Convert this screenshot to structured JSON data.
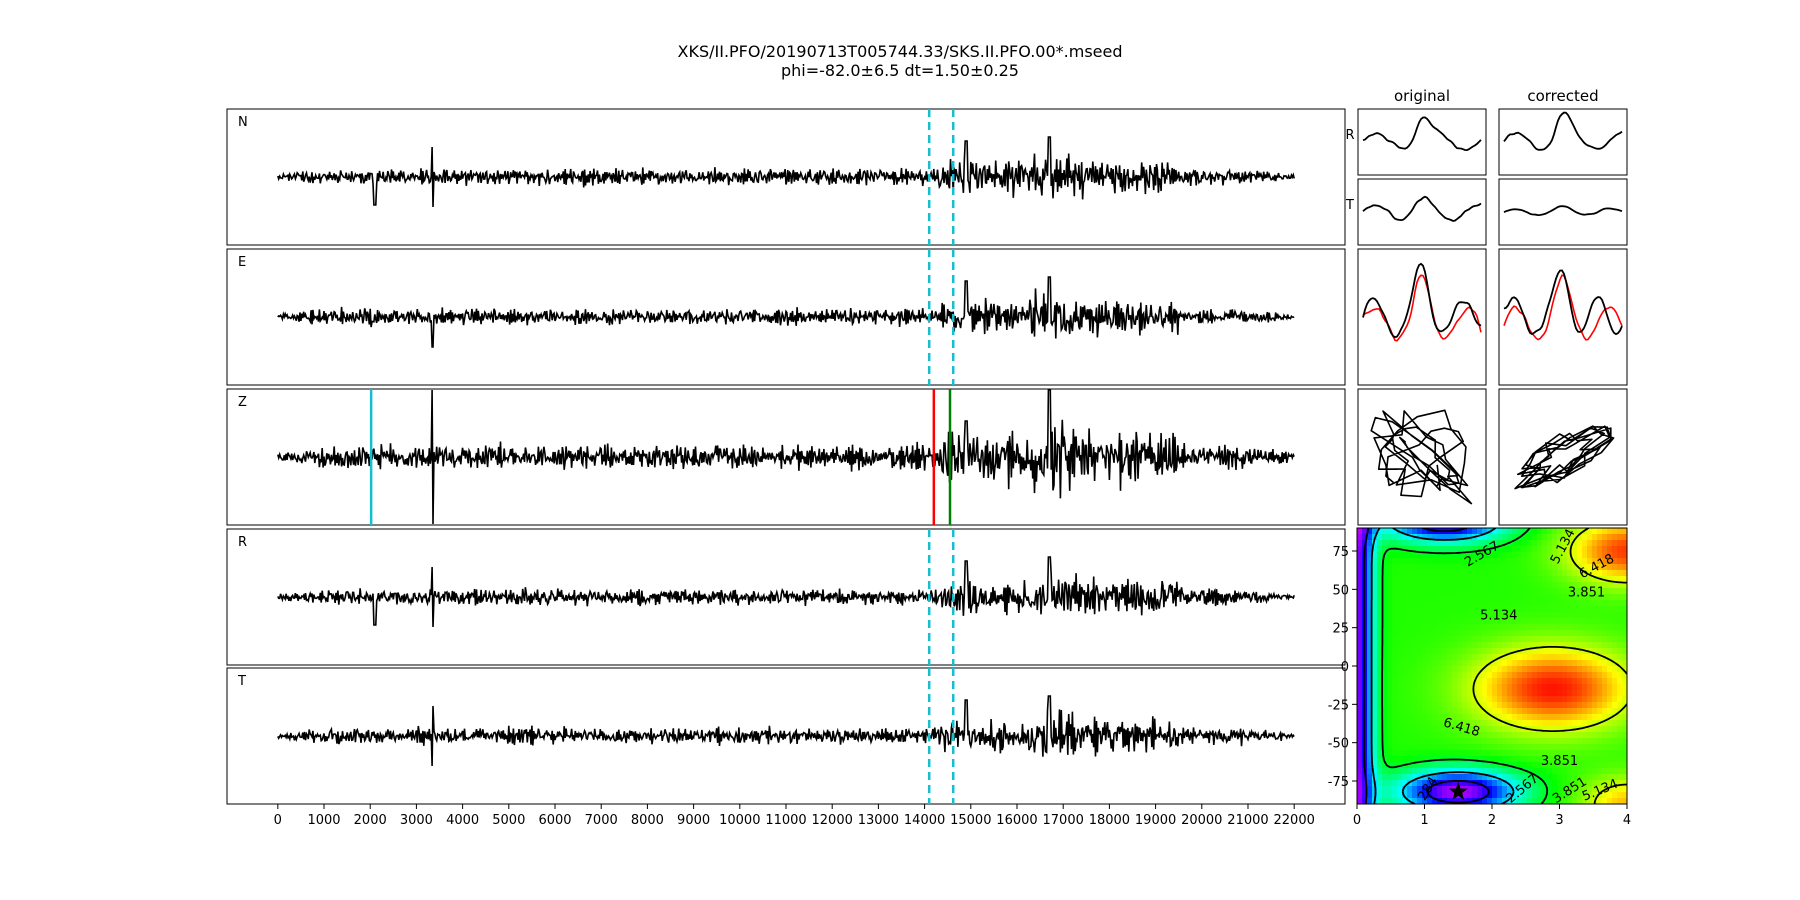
{
  "title_line1": "XKS/II.PFO/20190713T005744.33/SKS.II.PFO.00*.mseed",
  "title_line2": "phi=-82.0±6.5 dt=1.50±0.25",
  "chart_data": [
    {
      "type": "line",
      "id": "traces",
      "panels": [
        "N",
        "E",
        "Z",
        "R",
        "T"
      ],
      "x_ticks": [
        0,
        1000,
        2000,
        3000,
        4000,
        5000,
        6000,
        7000,
        8000,
        9000,
        10000,
        11000,
        12000,
        13000,
        14000,
        15000,
        16000,
        17000,
        18000,
        19000,
        20000,
        21000,
        22000
      ],
      "xlim": [
        -1100,
        23100
      ],
      "signal_range": [
        0,
        22000
      ],
      "window_markers": [
        14100,
        14620
      ],
      "window_color": "#17becf",
      "z_markers": [
        {
          "x": 2020,
          "color": "#17becf"
        },
        {
          "x": 14200,
          "color": "#ff0000"
        },
        {
          "x": 14550,
          "color": "#008000"
        }
      ]
    },
    {
      "type": "line",
      "id": "particle-motion",
      "column_titles": [
        "original",
        "corrected"
      ],
      "row_labels": [
        "R",
        "T",
        "",
        ""
      ],
      "overlay_color": "#ff0000"
    },
    {
      "type": "heatmap",
      "id": "error-surface",
      "x_ticks": [
        0,
        1,
        2,
        3,
        4
      ],
      "y_ticks": [
        75,
        50,
        25,
        0,
        -25,
        -50,
        -75
      ],
      "xlim": [
        0,
        4
      ],
      "ylim": [
        -90,
        90
      ],
      "contour_labels": [
        {
          "text": "2.567",
          "x": 1.85,
          "y": 73,
          "rot": -30
        },
        {
          "text": "5.134",
          "x": 3.05,
          "y": 78,
          "rot": -62
        },
        {
          "text": "6.418",
          "x": 3.55,
          "y": 65,
          "rot": -28
        },
        {
          "text": "3.851",
          "x": 3.4,
          "y": 48,
          "rot": 0
        },
        {
          "text": "5.134",
          "x": 2.1,
          "y": 33,
          "rot": 0
        },
        {
          "text": "6.418",
          "x": 1.55,
          "y": -40,
          "rot": 16
        },
        {
          "text": "3.851",
          "x": 3.0,
          "y": -62,
          "rot": 0
        },
        {
          "text": "284",
          "x": 1.05,
          "y": -80,
          "rot": -58
        },
        {
          "text": "2.567",
          "x": 2.45,
          "y": -80,
          "rot": -40
        },
        {
          "text": "3.851",
          "x": 3.15,
          "y": -81,
          "rot": -32
        },
        {
          "text": "5.134",
          "x": 3.6,
          "y": -81,
          "rot": -22
        }
      ],
      "best_fit": {
        "dt": 1.5,
        "phi": -82
      },
      "colormap": "hsv"
    }
  ]
}
